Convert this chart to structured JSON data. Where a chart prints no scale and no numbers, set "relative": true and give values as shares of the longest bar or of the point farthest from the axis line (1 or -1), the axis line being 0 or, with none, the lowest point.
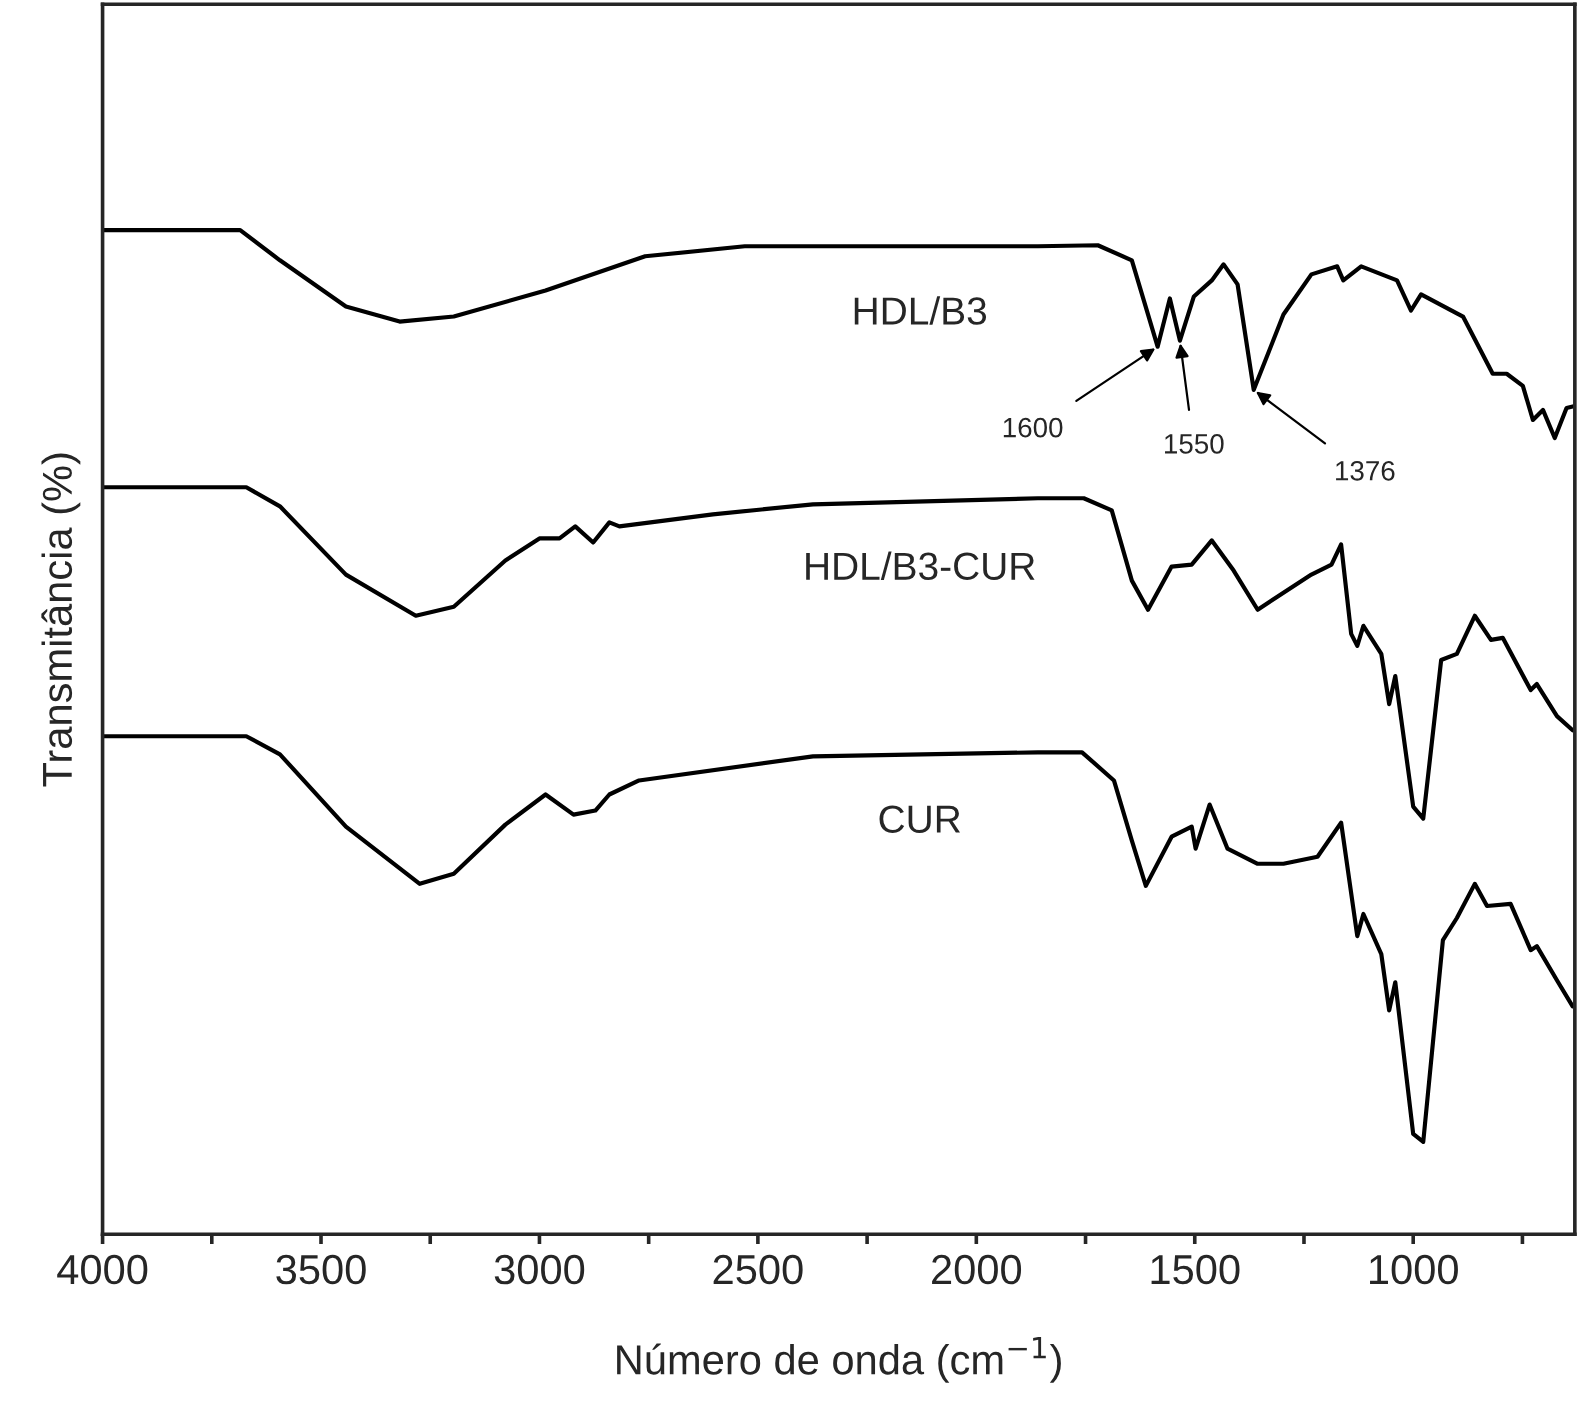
{
  "chart_data": {
    "type": "line",
    "relative": true,
    "xlabel": "Número de onda (cm$^{−1}$)",
    "ylabel": "Transmitância (%)",
    "xlim": [
      4000,
      630
    ],
    "xticks": [
      4000,
      {
        "value": 3750,
        "label": null
      },
      3500,
      {
        "value": 3250,
        "label": null
      },
      3000,
      {
        "value": 2750,
        "label": null
      },
      2500,
      {
        "value": 2250,
        "label": null
      },
      2000,
      {
        "value": 1750,
        "label": null
      },
      1500,
      {
        "value": 1250,
        "label": null
      },
      1000,
      {
        "value": 750,
        "label": null
      }
    ],
    "grid": false,
    "legend": false,
    "marker": "none",
    "line_style": "solid",
    "series": [
      {
        "name": "HDL/B3",
        "color": "#000000",
        "x": [
          4000,
          3685,
          3594,
          3443,
          3320,
          3196,
          2986,
          2758,
          2530,
          1859,
          1722,
          1644,
          1585,
          1557,
          1534,
          1502,
          1461,
          1434,
          1402,
          1365,
          1297,
          1233,
          1174,
          1160,
          1119,
          1037,
          1005,
          982,
          886,
          818,
          786,
          749,
          726,
          703,
          676,
          649,
          630
        ],
        "values": [
          1.0,
          1.0,
          0.97,
          0.924,
          0.909,
          0.914,
          0.94,
          0.974,
          0.984,
          0.984,
          0.985,
          0.97,
          0.884,
          0.932,
          0.89,
          0.934,
          0.95,
          0.966,
          0.946,
          0.841,
          0.916,
          0.956,
          0.964,
          0.95,
          0.964,
          0.95,
          0.92,
          0.936,
          0.914,
          0.857,
          0.857,
          0.845,
          0.811,
          0.821,
          0.793,
          0.823,
          0.825
        ]
      },
      {
        "name": "HDL/B3-CUR",
        "color": "#000000",
        "x": [
          4000,
          3671,
          3594,
          3443,
          3283,
          3196,
          3078,
          3000,
          2954,
          2918,
          2877,
          2840,
          2817,
          2603,
          2374,
          1859,
          1754,
          1690,
          1644,
          1607,
          1553,
          1507,
          1461,
          1411,
          1356,
          1311,
          1233,
          1187,
          1165,
          1142,
          1128,
          1114,
          1073,
          1055,
          1041,
          1000,
          977,
          936,
          900,
          859,
          822,
          795,
          731,
          717,
          671,
          635
        ],
        "values": [
          0.744,
          0.744,
          0.725,
          0.657,
          0.616,
          0.625,
          0.671,
          0.693,
          0.693,
          0.705,
          0.689,
          0.709,
          0.705,
          0.717,
          0.727,
          0.733,
          0.733,
          0.721,
          0.651,
          0.622,
          0.665,
          0.667,
          0.691,
          0.661,
          0.622,
          0.635,
          0.657,
          0.667,
          0.687,
          0.598,
          0.586,
          0.606,
          0.578,
          0.528,
          0.556,
          0.426,
          0.414,
          0.572,
          0.578,
          0.616,
          0.592,
          0.594,
          0.542,
          0.548,
          0.516,
          0.502
        ]
      },
      {
        "name": "CUR",
        "color": "#000000",
        "x": [
          4000,
          3671,
          3594,
          3443,
          3274,
          3196,
          3078,
          2986,
          2922,
          2872,
          2840,
          2772,
          2374,
          1859,
          1758,
          1685,
          1644,
          1612,
          1553,
          1507,
          1498,
          1466,
          1425,
          1356,
          1297,
          1219,
          1165,
          1128,
          1114,
          1073,
          1055,
          1041,
          1000,
          977,
          932,
          900,
          859,
          831,
          777,
          731,
          717,
          671,
          635
        ],
        "values": [
          0.496,
          0.496,
          0.478,
          0.406,
          0.349,
          0.359,
          0.408,
          0.438,
          0.418,
          0.422,
          0.438,
          0.452,
          0.476,
          0.48,
          0.48,
          0.452,
          0.392,
          0.347,
          0.396,
          0.406,
          0.384,
          0.428,
          0.384,
          0.369,
          0.369,
          0.376,
          0.41,
          0.297,
          0.319,
          0.279,
          0.223,
          0.251,
          0.1,
          0.092,
          0.293,
          0.315,
          0.349,
          0.327,
          0.329,
          0.283,
          0.287,
          0.253,
          0.227
        ]
      }
    ],
    "annotations": [
      {
        "text": "1600",
        "x": 1585,
        "y": 0.884
      },
      {
        "text": "1550",
        "x": 1534,
        "y": 0.89
      },
      {
        "text": "1376",
        "x": 1365,
        "y": 0.841
      }
    ]
  }
}
